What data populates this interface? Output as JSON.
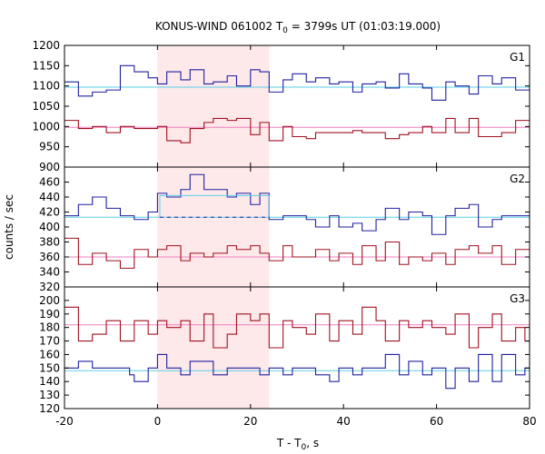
{
  "chart_data": {
    "type": "line",
    "title_main": "KONUS-WIND 061002 T",
    "title_sub": "0",
    "title_rest": " = 3799s UT (01:03:19.000)",
    "xlabel_main": "T - T",
    "xlabel_sub": "0",
    "xlabel_rest": ", s",
    "ylabel": "counts / sec",
    "xlim": [
      -20,
      80
    ],
    "x_ticks": [
      -20,
      0,
      20,
      40,
      60,
      80
    ],
    "x_tick_labels": [
      "-20",
      "0",
      "20",
      "40",
      "60",
      "80"
    ],
    "shaded_interval": [
      0,
      24
    ],
    "colors": {
      "blue_step": "#2020a0",
      "red_step": "#a01020",
      "blue_bg": "#5ad0e8",
      "red_bg": "#f080c0",
      "shade": "#fde8ea",
      "blue_dash": "#2020a0"
    },
    "panels": [
      {
        "label": "G1",
        "ylim": [
          900,
          1200
        ],
        "y_ticks": [
          900,
          950,
          1000,
          1050,
          1100,
          1150,
          1200
        ],
        "y_tick_labels": [
          "900",
          "950",
          "1000",
          "1050",
          "1100",
          "1150",
          "1200"
        ],
        "series": [
          {
            "color_key": "blue_step",
            "background": 1097,
            "bin_edges": [
              -20,
              -17,
              -14,
              -11,
              -8,
              -6,
              -5,
              -2,
              0,
              2,
              5,
              7,
              10,
              12,
              15,
              17,
              20,
              22,
              24,
              27,
              29,
              32,
              34,
              37,
              39,
              42,
              44,
              47,
              49,
              52,
              54,
              57,
              59,
              62,
              64,
              67,
              69,
              72,
              74,
              77,
              79,
              80
            ],
            "values": [
              1110,
              1075,
              1085,
              1090,
              1150,
              1150,
              1135,
              1120,
              1105,
              1135,
              1115,
              1140,
              1105,
              1110,
              1125,
              1100,
              1140,
              1135,
              1085,
              1115,
              1130,
              1110,
              1120,
              1105,
              1110,
              1085,
              1105,
              1110,
              1095,
              1130,
              1105,
              1095,
              1065,
              1110,
              1100,
              1080,
              1125,
              1105,
              1120,
              1090,
              1090
            ]
          },
          {
            "color_key": "red_step",
            "background": 998,
            "bin_edges": [
              -20,
              -17,
              -14,
              -11,
              -8,
              -6,
              -5,
              -2,
              0,
              2,
              5,
              7,
              10,
              12,
              15,
              17,
              20,
              22,
              24,
              27,
              29,
              32,
              34,
              37,
              39,
              42,
              44,
              47,
              49,
              52,
              54,
              57,
              59,
              62,
              64,
              67,
              69,
              72,
              74,
              77,
              79,
              80
            ],
            "values": [
              1015,
              995,
              1000,
              985,
              1000,
              1000,
              995,
              995,
              1000,
              965,
              960,
              995,
              1010,
              1020,
              1015,
              1020,
              980,
              1010,
              965,
              1000,
              975,
              970,
              985,
              985,
              985,
              990,
              985,
              985,
              970,
              980,
              985,
              1000,
              985,
              1020,
              985,
              1020,
              975,
              975,
              985,
              1015,
              1015
            ]
          }
        ]
      },
      {
        "label": "G2",
        "ylim": [
          320,
          480
        ],
        "y_ticks": [
          320,
          340,
          360,
          380,
          400,
          420,
          440,
          460
        ],
        "y_tick_labels": [
          "320",
          "340",
          "360",
          "380",
          "400",
          "420",
          "440",
          "460"
        ],
        "series": [
          {
            "color_key": "blue_step",
            "background": 413,
            "bin_edges": [
              -20,
              -17,
              -14,
              -11,
              -8,
              -6,
              -5,
              -2,
              0,
              2,
              5,
              7,
              10,
              12,
              15,
              17,
              20,
              22,
              24,
              27,
              29,
              32,
              34,
              37,
              39,
              42,
              44,
              47,
              49,
              52,
              54,
              57,
              59,
              62,
              64,
              67,
              69,
              72,
              74,
              77,
              79,
              80
            ],
            "values": [
              415,
              430,
              440,
              425,
              415,
              415,
              410,
              420,
              445,
              440,
              450,
              470,
              450,
              450,
              440,
              445,
              430,
              445,
              410,
              415,
              415,
              410,
              400,
              415,
              400,
              405,
              395,
              410,
              425,
              410,
              420,
              415,
              390,
              415,
              425,
              430,
              400,
              410,
              415,
              415,
              415
            ],
            "burst_level": 442,
            "burst_range": [
              0.5,
              24
            ],
            "dash_level": 413,
            "dash_range": [
              0.5,
              24
            ]
          },
          {
            "color_key": "red_step",
            "background": 360,
            "bin_edges": [
              -20,
              -17,
              -14,
              -11,
              -8,
              -6,
              -5,
              -2,
              0,
              2,
              5,
              7,
              10,
              12,
              15,
              17,
              20,
              22,
              24,
              27,
              29,
              32,
              34,
              37,
              39,
              42,
              44,
              47,
              49,
              52,
              54,
              57,
              59,
              62,
              64,
              67,
              69,
              72,
              74,
              77,
              79,
              80
            ],
            "values": [
              385,
              350,
              365,
              355,
              345,
              345,
              370,
              360,
              370,
              375,
              355,
              365,
              360,
              365,
              375,
              370,
              375,
              365,
              355,
              375,
              360,
              360,
              370,
              355,
              365,
              350,
              375,
              355,
              380,
              350,
              360,
              355,
              365,
              350,
              370,
              375,
              365,
              375,
              350,
              370,
              370
            ]
          }
        ]
      },
      {
        "label": "G3",
        "ylim": [
          120,
          210
        ],
        "y_ticks": [
          120,
          130,
          140,
          150,
          160,
          170,
          180,
          190,
          200
        ],
        "y_tick_labels": [
          "120",
          "130",
          "140",
          "150",
          "160",
          "170",
          "180",
          "190",
          "200"
        ],
        "series": [
          {
            "color_key": "red_step",
            "background": 182,
            "bin_edges": [
              -20,
              -17,
              -14,
              -11,
              -8,
              -6,
              -5,
              -2,
              0,
              2,
              5,
              7,
              10,
              12,
              15,
              17,
              20,
              22,
              24,
              27,
              29,
              32,
              34,
              37,
              39,
              42,
              44,
              47,
              49,
              52,
              54,
              57,
              59,
              62,
              64,
              67,
              69,
              72,
              74,
              77,
              79,
              80
            ],
            "values": [
              195,
              170,
              175,
              185,
              170,
              170,
              185,
              175,
              185,
              180,
              185,
              170,
              190,
              165,
              175,
              190,
              185,
              190,
              165,
              185,
              180,
              175,
              190,
              170,
              185,
              175,
              195,
              185,
              170,
              185,
              180,
              185,
              180,
              175,
              190,
              165,
              180,
              190,
              170,
              180,
              170
            ]
          },
          {
            "color_key": "blue_step",
            "background": 148,
            "bin_edges": [
              -20,
              -17,
              -14,
              -11,
              -8,
              -6,
              -5,
              -2,
              0,
              2,
              5,
              7,
              10,
              12,
              15,
              17,
              20,
              22,
              24,
              27,
              29,
              32,
              34,
              37,
              39,
              42,
              44,
              47,
              49,
              52,
              54,
              57,
              59,
              62,
              64,
              67,
              69,
              72,
              74,
              77,
              79,
              80
            ],
            "values": [
              150,
              155,
              150,
              150,
              150,
              145,
              140,
              150,
              160,
              150,
              145,
              155,
              155,
              145,
              150,
              150,
              150,
              145,
              150,
              145,
              150,
              150,
              145,
              140,
              150,
              145,
              150,
              150,
              160,
              145,
              155,
              145,
              150,
              135,
              150,
              140,
              160,
              140,
              160,
              145,
              150
            ]
          }
        ]
      }
    ]
  }
}
